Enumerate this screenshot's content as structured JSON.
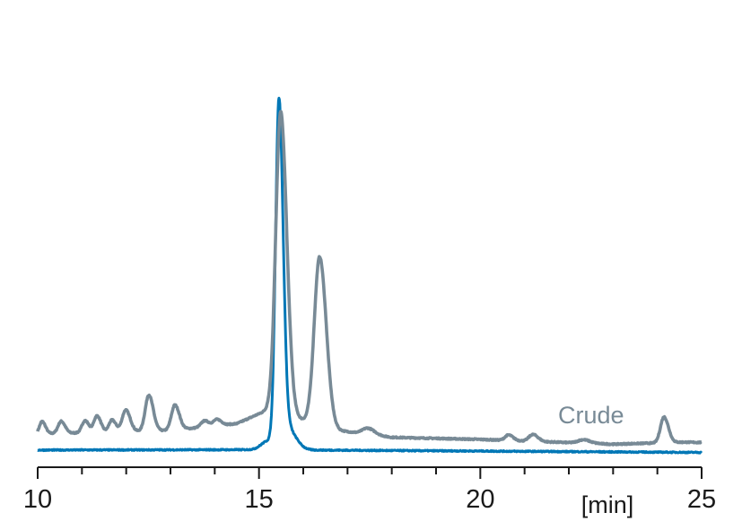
{
  "chart_data": {
    "type": "line",
    "title": "",
    "xlabel": "[min]",
    "ylabel": "",
    "xlim": [
      10,
      25
    ],
    "x_ticks_major": [
      10,
      15,
      20,
      25
    ],
    "x_tick_labels": [
      "10",
      "15",
      "20",
      "25"
    ],
    "x_ticks_minor_step": 1,
    "y_axis_shown": false,
    "grid": false,
    "y_units": "relative signal (arbitrary)",
    "ylim": [
      0,
      105
    ],
    "series": [
      {
        "name": "Crude",
        "color": "#788a96",
        "label_shown": true,
        "baseline": [
          [
            10,
            5
          ],
          [
            13,
            6
          ],
          [
            14.5,
            8
          ],
          [
            15.2,
            12
          ],
          [
            16.8,
            6
          ],
          [
            18,
            4
          ],
          [
            20,
            3.4
          ],
          [
            23,
            2
          ],
          [
            24.6,
            2.6
          ],
          [
            25,
            2.5
          ]
        ],
        "peaks": [
          {
            "rt": 10.1,
            "height": 3.6,
            "width": 0.06
          },
          {
            "rt": 10.53,
            "height": 3.5,
            "width": 0.07
          },
          {
            "rt": 11.07,
            "height": 3.5,
            "width": 0.07
          },
          {
            "rt": 11.34,
            "height": 4.8,
            "width": 0.07
          },
          {
            "rt": 11.68,
            "height": 3.5,
            "width": 0.07
          },
          {
            "rt": 11.99,
            "height": 6.3,
            "width": 0.08
          },
          {
            "rt": 12.51,
            "height": 10.5,
            "width": 0.08
          },
          {
            "rt": 13.1,
            "height": 7.3,
            "width": 0.08
          },
          {
            "rt": 13.77,
            "height": 1.8,
            "width": 0.08
          },
          {
            "rt": 14.05,
            "height": 1.8,
            "width": 0.08
          },
          {
            "rt": 15.49,
            "height": 88,
            "width": 0.11
          },
          {
            "rt": 16.37,
            "height": 49,
            "width": 0.12
          },
          {
            "rt": 17.46,
            "height": 1.8,
            "width": 0.12
          },
          {
            "rt": 20.64,
            "height": 1.6,
            "width": 0.08
          },
          {
            "rt": 21.19,
            "height": 2.0,
            "width": 0.09
          },
          {
            "rt": 22.33,
            "height": 1.0,
            "width": 0.12
          },
          {
            "rt": 24.15,
            "height": 7.5,
            "width": 0.08
          }
        ]
      },
      {
        "name": "",
        "color": "#0077b6",
        "label_shown": false,
        "baseline": [
          [
            10,
            0.3
          ],
          [
            15,
            0.4
          ],
          [
            25,
            -0.4
          ]
        ],
        "peaks": [
          {
            "rt": 15.2,
            "height": 2.5,
            "width": 0.15
          },
          {
            "rt": 15.45,
            "height": 99,
            "width": 0.075
          },
          {
            "rt": 15.65,
            "height": 6,
            "width": 0.15
          }
        ]
      }
    ]
  }
}
